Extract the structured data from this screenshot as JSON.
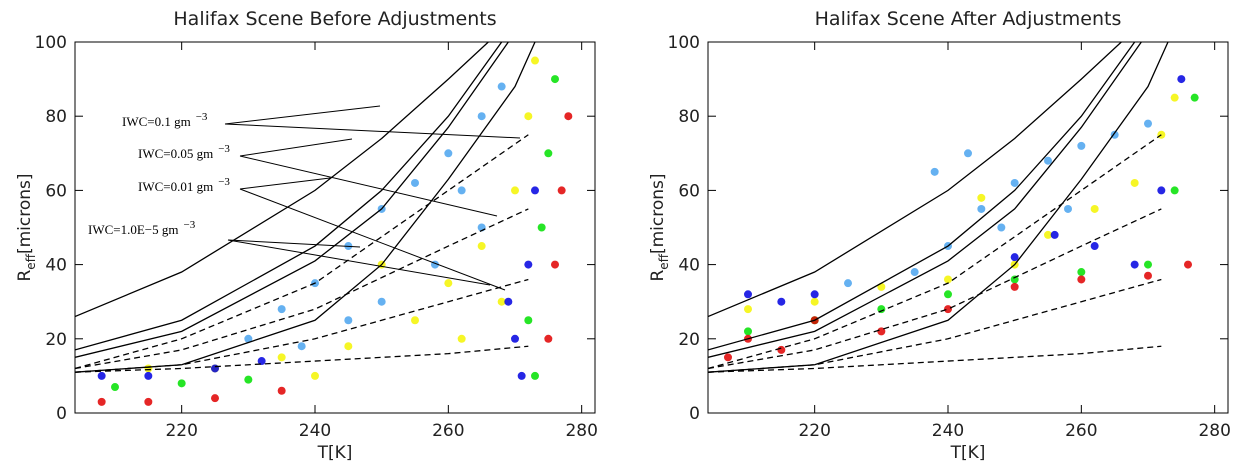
{
  "chart_data": [
    {
      "type": "scatter",
      "title": "Halifax Scene Before Adjustments",
      "x_label": "T[K]",
      "y_label": "R",
      "y_label_sub": "eff",
      "y_label_unit": "[microns]",
      "xlim": [
        204,
        282
      ],
      "ylim": [
        0,
        100
      ],
      "xticks": [
        220,
        240,
        260,
        280
      ],
      "yticks": [
        0,
        20,
        40,
        60,
        80,
        100
      ],
      "annotations": [
        {
          "label": "IWC=0.1 gm",
          "exponent": "−3"
        },
        {
          "label": "IWC=0.05 gm",
          "exponent": "−3"
        },
        {
          "label": "IWC=0.01 gm",
          "exponent": "−3"
        },
        {
          "label": "IWC=1.0E−5 gm",
          "exponent": "−3"
        }
      ],
      "series": [
        {
          "mode": "scatter",
          "color": "#4aa3ef",
          "x": [
            230,
            235,
            240,
            245,
            250,
            255,
            260,
            265,
            268,
            250,
            258,
            265,
            245,
            262,
            238
          ],
          "values": [
            20,
            28,
            35,
            45,
            55,
            62,
            70,
            80,
            88,
            30,
            40,
            50,
            25,
            60,
            18
          ]
        },
        {
          "mode": "scatter",
          "color": "#f5f500",
          "x": [
            215,
            225,
            235,
            245,
            255,
            260,
            265,
            270,
            272,
            273,
            250,
            240,
            268,
            262
          ],
          "values": [
            12,
            12,
            15,
            18,
            25,
            35,
            45,
            60,
            80,
            95,
            40,
            10,
            30,
            20
          ]
        },
        {
          "mode": "scatter",
          "color": "#0000e0",
          "x": [
            208,
            215,
            225,
            232,
            270,
            272,
            273,
            271,
            269
          ],
          "values": [
            10,
            10,
            12,
            14,
            20,
            40,
            60,
            10,
            30
          ]
        },
        {
          "mode": "scatter",
          "color": "#00e000",
          "x": [
            210,
            220,
            230,
            272,
            274,
            275,
            273,
            276
          ],
          "values": [
            7,
            8,
            9,
            25,
            50,
            70,
            10,
            90
          ]
        },
        {
          "mode": "scatter",
          "color": "#e00000",
          "x": [
            208,
            215,
            225,
            235,
            276,
            277,
            278,
            275
          ],
          "values": [
            3,
            3,
            4,
            6,
            40,
            60,
            80,
            20
          ]
        },
        {
          "mode": "solid",
          "color": "#000000",
          "x": [
            204,
            220,
            240,
            250,
            260,
            266
          ],
          "values": [
            26,
            38,
            60,
            74,
            90,
            100
          ]
        },
        {
          "mode": "solid",
          "color": "#000000",
          "x": [
            204,
            220,
            240,
            250,
            260,
            268
          ],
          "values": [
            17,
            25,
            45,
            60,
            80,
            100
          ]
        },
        {
          "mode": "solid",
          "color": "#000000",
          "x": [
            204,
            220,
            240,
            250,
            260,
            269
          ],
          "values": [
            15,
            22,
            41,
            55,
            77,
            100
          ]
        },
        {
          "mode": "solid",
          "color": "#000000",
          "x": [
            204,
            220,
            240,
            250,
            260,
            270,
            273
          ],
          "values": [
            11,
            13,
            25,
            40,
            63,
            88,
            100
          ]
        },
        {
          "mode": "dashed",
          "color": "#000000",
          "x": [
            204,
            220,
            240,
            260,
            272
          ],
          "values": [
            12,
            20,
            35,
            60,
            75
          ]
        },
        {
          "mode": "dashed",
          "color": "#000000",
          "x": [
            204,
            220,
            240,
            260,
            272
          ],
          "values": [
            12,
            17,
            28,
            45,
            55
          ]
        },
        {
          "mode": "dashed",
          "color": "#000000",
          "x": [
            204,
            220,
            240,
            260,
            272
          ],
          "values": [
            11,
            13,
            20,
            30,
            36
          ]
        },
        {
          "mode": "dashed",
          "color": "#000000",
          "x": [
            204,
            220,
            240,
            260,
            272
          ],
          "values": [
            11,
            12,
            14,
            16,
            18
          ]
        }
      ]
    },
    {
      "type": "scatter",
      "title": "Halifax Scene After Adjustments",
      "x_label": "T[K]",
      "y_label": "R",
      "y_label_sub": "eff",
      "y_label_unit": "[microns]",
      "xlim": [
        204,
        282
      ],
      "ylim": [
        0,
        100
      ],
      "xticks": [
        220,
        240,
        260,
        280
      ],
      "yticks": [
        0,
        20,
        40,
        60,
        80,
        100
      ],
      "series": [
        {
          "mode": "scatter",
          "color": "#4aa3ef",
          "x": [
            225,
            235,
            240,
            245,
            250,
            255,
            260,
            265,
            270,
            248,
            258,
            238,
            243
          ],
          "values": [
            35,
            38,
            45,
            55,
            62,
            68,
            72,
            75,
            78,
            50,
            55,
            65,
            70
          ]
        },
        {
          "mode": "scatter",
          "color": "#f5f500",
          "x": [
            210,
            220,
            230,
            240,
            250,
            255,
            262,
            268,
            272,
            274,
            245
          ],
          "values": [
            28,
            30,
            34,
            36,
            40,
            48,
            55,
            62,
            75,
            85,
            58
          ]
        },
        {
          "mode": "scatter",
          "color": "#0000e0",
          "x": [
            210,
            215,
            220,
            250,
            256,
            262,
            268,
            272,
            275
          ],
          "values": [
            32,
            30,
            32,
            42,
            48,
            45,
            40,
            60,
            90
          ]
        },
        {
          "mode": "scatter",
          "color": "#00e000",
          "x": [
            210,
            220,
            230,
            240,
            250,
            260,
            270,
            274,
            277
          ],
          "values": [
            22,
            25,
            28,
            32,
            36,
            38,
            40,
            60,
            85
          ]
        },
        {
          "mode": "scatter",
          "color": "#e00000",
          "x": [
            207,
            210,
            215,
            220,
            230,
            240,
            250,
            260,
            270,
            276
          ],
          "values": [
            15,
            20,
            17,
            25,
            22,
            28,
            34,
            36,
            37,
            40
          ]
        },
        {
          "mode": "solid",
          "color": "#000000",
          "x": [
            204,
            220,
            240,
            250,
            260,
            266
          ],
          "values": [
            26,
            38,
            60,
            74,
            90,
            100
          ]
        },
        {
          "mode": "solid",
          "color": "#000000",
          "x": [
            204,
            220,
            240,
            250,
            260,
            268
          ],
          "values": [
            17,
            25,
            45,
            60,
            80,
            100
          ]
        },
        {
          "mode": "solid",
          "color": "#000000",
          "x": [
            204,
            220,
            240,
            250,
            260,
            269
          ],
          "values": [
            15,
            22,
            41,
            55,
            77,
            100
          ]
        },
        {
          "mode": "solid",
          "color": "#000000",
          "x": [
            204,
            220,
            240,
            250,
            260,
            270,
            273
          ],
          "values": [
            11,
            13,
            25,
            40,
            63,
            88,
            100
          ]
        },
        {
          "mode": "dashed",
          "color": "#000000",
          "x": [
            204,
            220,
            240,
            260,
            272
          ],
          "values": [
            12,
            20,
            35,
            60,
            75
          ]
        },
        {
          "mode": "dashed",
          "color": "#000000",
          "x": [
            204,
            220,
            240,
            260,
            272
          ],
          "values": [
            12,
            17,
            28,
            45,
            55
          ]
        },
        {
          "mode": "dashed",
          "color": "#000000",
          "x": [
            204,
            220,
            240,
            260,
            272
          ],
          "values": [
            11,
            13,
            20,
            30,
            36
          ]
        },
        {
          "mode": "dashed",
          "color": "#000000",
          "x": [
            204,
            220,
            240,
            260,
            272
          ],
          "values": [
            11,
            12,
            14,
            16,
            18
          ]
        }
      ]
    }
  ]
}
